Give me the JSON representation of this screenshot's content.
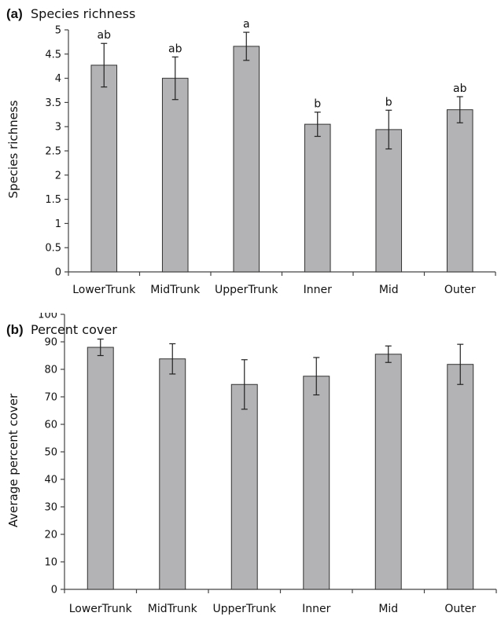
{
  "chart_data": [
    {
      "type": "bar",
      "panel_tag": "(a)",
      "title": "Species richness",
      "ylabel": "Species richness",
      "xlabel": "",
      "ylim": [
        0,
        5
      ],
      "yticks": [
        0,
        0.5,
        1,
        1.5,
        2,
        2.5,
        3,
        3.5,
        4,
        4.5,
        5
      ],
      "ytick_labels": [
        "0",
        "0.5",
        "1",
        "1.5",
        "2",
        "2.5",
        "3",
        "3.5",
        "4",
        "4.5",
        "5"
      ],
      "categories": [
        "LowerTrunk",
        "MidTrunk",
        "UpperTrunk",
        "Inner",
        "Mid",
        "Outer"
      ],
      "values": [
        4.27,
        4.0,
        4.66,
        3.05,
        2.94,
        3.35
      ],
      "error": [
        0.45,
        0.44,
        0.29,
        0.25,
        0.4,
        0.27
      ],
      "significance_labels": [
        "ab",
        "ab",
        "a",
        "b",
        "b",
        "ab"
      ],
      "bar_color": "#b3b3b5",
      "grid": false,
      "legend": "none"
    },
    {
      "type": "bar",
      "panel_tag": "(b)",
      "title": "Percent cover",
      "ylabel": "Average percent cover",
      "xlabel": "",
      "ylim": [
        0,
        100
      ],
      "yticks": [
        0,
        10,
        20,
        30,
        40,
        50,
        60,
        70,
        80,
        90,
        100
      ],
      "ytick_labels": [
        "0",
        "10",
        "20",
        "30",
        "40",
        "50",
        "60",
        "70",
        "80",
        "90",
        "100"
      ],
      "categories": [
        "LowerTrunk",
        "MidTrunk",
        "UpperTrunk",
        "Inner",
        "Mid",
        "Outer"
      ],
      "values": [
        88,
        83.8,
        74.5,
        77.5,
        85.5,
        81.8
      ],
      "error": [
        3.0,
        5.5,
        9.0,
        6.8,
        3.0,
        7.3
      ],
      "bar_color": "#b3b3b5",
      "grid": false,
      "legend": "none"
    }
  ]
}
